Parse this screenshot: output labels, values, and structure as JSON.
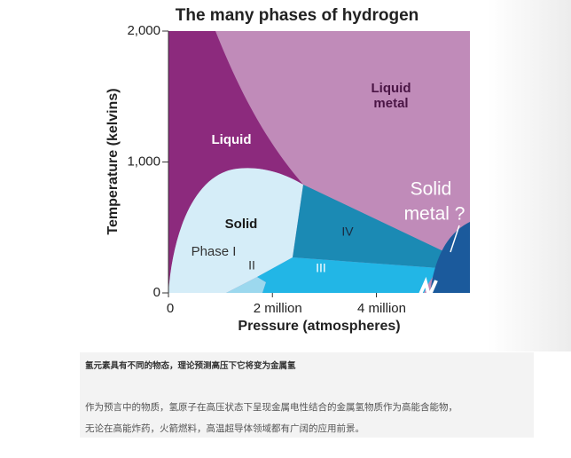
{
  "chart_data": {
    "type": "phase-diagram",
    "title": "The many phases of hydrogen",
    "xlabel": "Pressure (atmospheres)",
    "ylabel": "Temperature (kelvins)",
    "xlim": [
      0,
      5800000
    ],
    "ylim": [
      0,
      2000
    ],
    "xticks": [
      0,
      {
        "value": 2000000,
        "label": "2 million"
      },
      {
        "value": 4000000,
        "label": "4 million"
      }
    ],
    "yticks": [
      0,
      {
        "value": 1000,
        "label": "1,000"
      },
      {
        "value": 2000,
        "label": "2,000"
      }
    ],
    "regions": [
      {
        "lines": [
          "Liquid"
        ]
      },
      {
        "lines": [
          "Liquid",
          "metal"
        ]
      },
      {
        "lines": [
          "Solid"
        ]
      },
      {
        "lines": [
          "Phase I"
        ]
      },
      {
        "lines": [
          "II"
        ]
      },
      {
        "lines": [
          "III"
        ]
      },
      {
        "lines": [
          "IV"
        ]
      },
      {
        "lines": [
          "Solid",
          "metal ?"
        ]
      }
    ]
  },
  "caption": {
    "heading": "氢元素具有不同的物态，理论预测高压下它将变为金属氢",
    "lines": [
      "作为预言中的物质，氢原子在高压状态下呈现金属电性结合的金属氢物质作为高能含能物，",
      "无论在高能炸药，火箭燃料，高温超导体领域都有广阔的应用前景。"
    ]
  }
}
